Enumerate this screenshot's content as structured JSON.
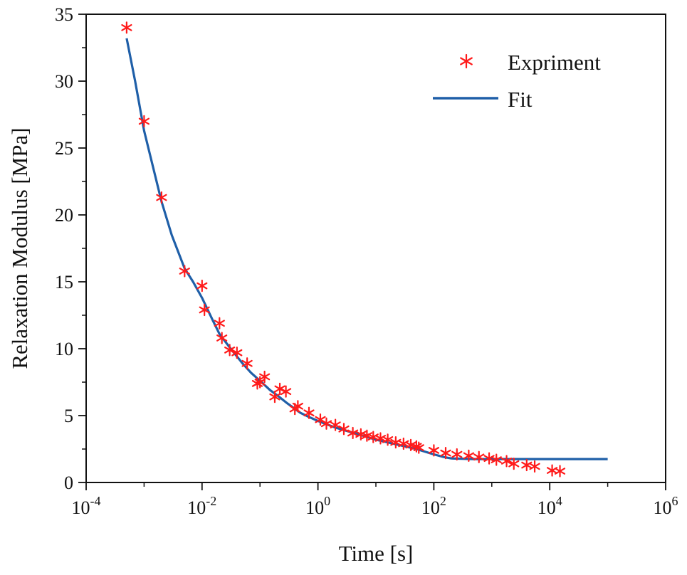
{
  "chart_data": {
    "type": "scatter",
    "title": "",
    "xlabel": "Time [s]",
    "ylabel": "Relaxation Modulus [MPa]",
    "xscale": "log",
    "xlim": [
      0.0001,
      1000000
    ],
    "ylim": [
      0,
      35
    ],
    "grid": false,
    "legend_position": "top-right",
    "x_ticks": [
      {
        "value": 0.0001,
        "base": "10",
        "exp": "-4"
      },
      {
        "value": 0.01,
        "base": "10",
        "exp": "-2"
      },
      {
        "value": 1,
        "base": "10",
        "exp": "0"
      },
      {
        "value": 100,
        "base": "10",
        "exp": "2"
      },
      {
        "value": 10000,
        "base": "10",
        "exp": "4"
      },
      {
        "value": 1000000,
        "base": "10",
        "exp": "6"
      }
    ],
    "y_ticks": [
      0,
      5,
      10,
      15,
      20,
      25,
      30,
      35
    ],
    "series": [
      {
        "name": "Expriment",
        "kind": "scatter",
        "color": "#ff1a1a",
        "marker": "asterisk",
        "x": [
          0.0005,
          0.001,
          0.002,
          0.005,
          0.01,
          0.011,
          0.02,
          0.022,
          0.03,
          0.04,
          0.06,
          0.09,
          0.1,
          0.12,
          0.18,
          0.22,
          0.28,
          0.4,
          0.45,
          0.7,
          1.1,
          1.4,
          2,
          2.8,
          4,
          5.5,
          7,
          9,
          12,
          16,
          22,
          30,
          40,
          50,
          55,
          100,
          160,
          250,
          400,
          600,
          900,
          1200,
          1800,
          2400,
          4000,
          5500,
          11000,
          15000
        ],
        "y": [
          34.0,
          27.0,
          21.3,
          15.8,
          14.7,
          12.9,
          11.9,
          10.8,
          9.9,
          9.7,
          8.9,
          7.4,
          7.5,
          7.9,
          6.4,
          7.0,
          6.8,
          5.5,
          5.7,
          5.2,
          4.7,
          4.4,
          4.3,
          4.0,
          3.7,
          3.6,
          3.5,
          3.4,
          3.3,
          3.2,
          3.0,
          2.9,
          2.8,
          2.7,
          2.6,
          2.4,
          2.2,
          2.1,
          2.0,
          1.9,
          1.8,
          1.7,
          1.6,
          1.4,
          1.3,
          1.2,
          0.9,
          0.85
        ]
      },
      {
        "name": "Fit",
        "kind": "line",
        "color": "#1f5fa8",
        "x": [
          0.0005,
          0.0007,
          0.001,
          0.0015,
          0.002,
          0.003,
          0.005,
          0.007,
          0.01,
          0.015,
          0.02,
          0.03,
          0.05,
          0.07,
          0.1,
          0.15,
          0.2,
          0.3,
          0.5,
          0.7,
          1,
          2,
          5,
          10,
          20,
          50,
          100,
          150,
          200,
          500,
          1000,
          10000,
          100000
        ],
        "y": [
          33.2,
          30.0,
          26.3,
          23.2,
          21.0,
          18.5,
          16.0,
          15.0,
          13.8,
          12.2,
          11.1,
          10.1,
          8.9,
          8.2,
          7.6,
          6.9,
          6.5,
          5.9,
          5.2,
          4.9,
          4.6,
          4.1,
          3.6,
          3.2,
          2.9,
          2.5,
          2.1,
          1.9,
          1.8,
          1.75,
          1.75,
          1.75,
          1.75
        ]
      }
    ]
  }
}
